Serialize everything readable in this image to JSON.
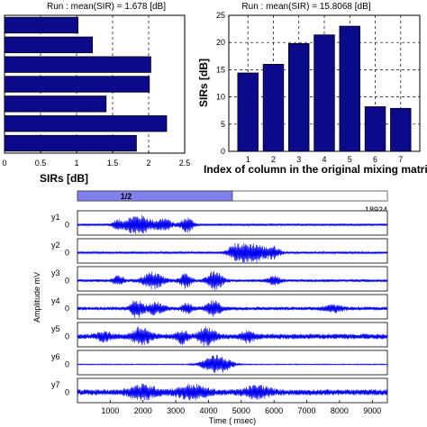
{
  "chart_data": [
    {
      "type": "bar",
      "orientation": "horizontal",
      "title": "Run :   mean(SIR) = 1.678 [dB]",
      "xlabel": "SIRs [dB]",
      "ylabel": "",
      "xlim": [
        0,
        2.5
      ],
      "xticks": [
        "0",
        "0.5",
        "1",
        "1.5",
        "2",
        "2.5"
      ],
      "grid": "x-dashed",
      "values": [
        1.02,
        1.22,
        2.03,
        2.01,
        1.41,
        2.25,
        1.83
      ],
      "bar_color": "#0a0a8a"
    },
    {
      "type": "bar",
      "title": "Run :   mean(SIR) = 15.8068 [dB]",
      "xlabel": "Index of column in the original mixing matri",
      "ylabel": "SIRs [dB]",
      "ylim": [
        0,
        25
      ],
      "yticks": [
        "0",
        "5",
        "10",
        "15",
        "20",
        "25"
      ],
      "categories": [
        "1",
        "2",
        "3",
        "4",
        "5",
        "6",
        "7"
      ],
      "values": [
        14.4,
        16.0,
        19.8,
        21.4,
        23.0,
        8.2,
        7.9
      ],
      "grid": "dashed",
      "bar_color": "#0a0a8a"
    },
    {
      "type": "line",
      "title": "",
      "page_indicator": "1/2",
      "page_progress": 0.5,
      "max_sample_label": "18924",
      "xlabel": "Time ( msec)",
      "ylabel": "Amplitude  mV",
      "xlim": [
        0,
        9460
      ],
      "xticks": [
        "1000",
        "2000",
        "3000",
        "4000",
        "5000",
        "6000",
        "7000",
        "8000",
        "9000"
      ],
      "ytick_label": "0",
      "series": [
        {
          "name": "y1",
          "bursts": [
            [
              1850,
              650,
              1.0
            ],
            [
              2650,
              350,
              0.6
            ],
            [
              3350,
              300,
              0.7
            ],
            [
              1200,
              200,
              0.35
            ]
          ],
          "noise": 0.12
        },
        {
          "name": "y2",
          "bursts": [
            [
              5300,
              700,
              1.0
            ],
            [
              4800,
              300,
              0.6
            ],
            [
              6000,
              300,
              0.5
            ]
          ],
          "noise": 0.12
        },
        {
          "name": "y3",
          "bursts": [
            [
              2300,
              500,
              0.8
            ],
            [
              1250,
              250,
              0.45
            ],
            [
              3300,
              280,
              0.7
            ],
            [
              4200,
              350,
              1.0
            ],
            [
              6000,
              300,
              0.4
            ]
          ],
          "noise": 0.15
        },
        {
          "name": "y4",
          "bursts": [
            [
              1800,
              250,
              1.0
            ],
            [
              2350,
              450,
              0.55
            ],
            [
              4150,
              350,
              0.7
            ],
            [
              3350,
              250,
              0.45
            ],
            [
              7800,
              400,
              0.35
            ]
          ],
          "noise": 0.18
        },
        {
          "name": "y5",
          "bursts": [
            [
              3950,
              350,
              1.0
            ],
            [
              1950,
              400,
              0.85
            ],
            [
              3200,
              250,
              0.6
            ],
            [
              5200,
              300,
              0.5
            ],
            [
              800,
              300,
              0.45
            ]
          ],
          "noise": 0.28
        },
        {
          "name": "y6",
          "bursts": [
            [
              4250,
              650,
              1.0
            ]
          ],
          "noise": 0.05
        },
        {
          "name": "y7",
          "bursts": [
            [
              2000,
              700,
              0.6
            ],
            [
              3500,
              700,
              0.6
            ],
            [
              5500,
              600,
              0.55
            ]
          ],
          "noise": 0.3
        }
      ],
      "line_color": "#0000ee"
    }
  ]
}
